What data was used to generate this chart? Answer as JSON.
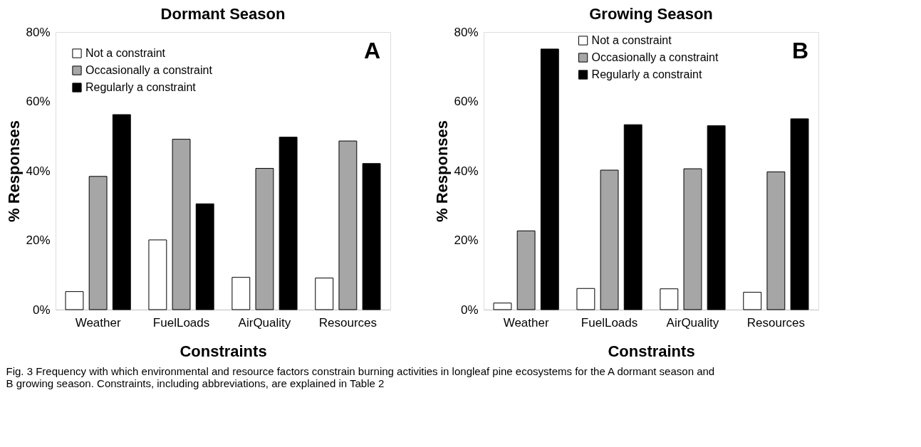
{
  "chart_data": [
    {
      "type": "bar",
      "title": "Dormant Season",
      "xlabel": "Constraints",
      "ylabel": "% Responses",
      "categories": [
        "Weather",
        "FuelLoads",
        "AirQuality",
        "Resources"
      ],
      "series": [
        {
          "name": "Not a constraint",
          "color": "#ffffff",
          "values": [
            5.2,
            20.1,
            9.3,
            9.1
          ]
        },
        {
          "name": "Occasionally a constraint",
          "color": "#a6a6a6",
          "values": [
            38.4,
            49.1,
            40.7,
            48.6
          ]
        },
        {
          "name": "Regularly a constraint",
          "color": "#000000",
          "values": [
            56.2,
            30.5,
            49.7,
            42.1
          ]
        }
      ],
      "ylim": [
        0,
        80
      ],
      "yticks": [
        {
          "value": 0,
          "label": "0%"
        },
        {
          "value": 20,
          "label": "20%"
        },
        {
          "value": 40,
          "label": "40%"
        },
        {
          "value": 60,
          "label": "60%"
        },
        {
          "value": 80,
          "label": "80%"
        }
      ],
      "grid": false,
      "legend": "top left",
      "annotations": [
        "A",
        "Fig. 3  Frequency with which environmental and resource factors constrain burning activities in longleaf pine ecosystems for the A dormant season and B growing season. Constraints, including abbreviations, are explained in Table 2"
      ]
    },
    {
      "type": "bar",
      "title": "Growing Season",
      "xlabel": "Constraints",
      "ylabel": "% Responses",
      "categories": [
        "Weather",
        "FuelLoads",
        "AirQuality",
        "Resources"
      ],
      "series": [
        {
          "name": "Not a constraint",
          "color": "#ffffff",
          "values": [
            1.9,
            6.1,
            6.0,
            5.0
          ]
        },
        {
          "name": "Occasionally a constraint",
          "color": "#a6a6a6",
          "values": [
            22.7,
            40.2,
            40.6,
            39.7
          ]
        },
        {
          "name": "Regularly a constraint",
          "color": "#000000",
          "values": [
            75.1,
            53.3,
            53.0,
            55.0
          ]
        }
      ],
      "ylim": [
        0,
        80
      ],
      "yticks": [
        {
          "value": 0,
          "label": "0%"
        },
        {
          "value": 20,
          "label": "20%"
        },
        {
          "value": 40,
          "label": "40%"
        },
        {
          "value": 60,
          "label": "60%"
        },
        {
          "value": 80,
          "label": "80%"
        }
      ],
      "grid": false,
      "legend": "top",
      "annotations": [
        "B"
      ]
    }
  ]
}
